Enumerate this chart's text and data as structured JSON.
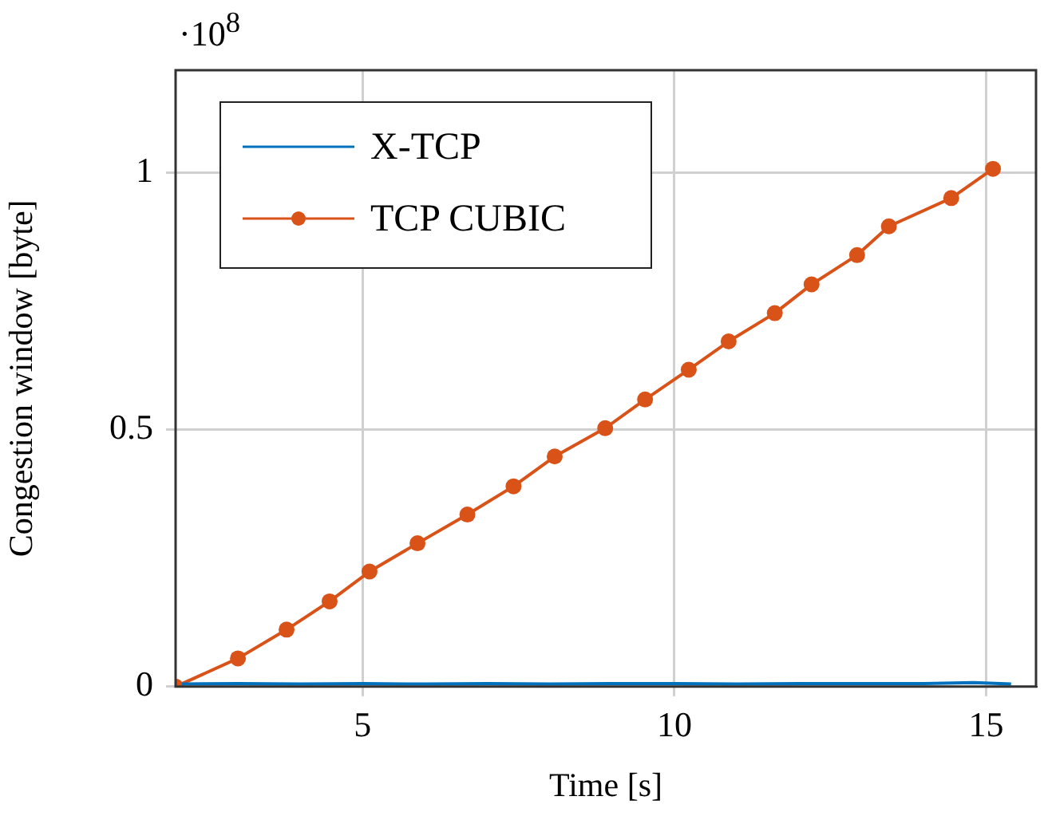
{
  "chart_data": {
    "type": "line",
    "xlabel": "Time [s]",
    "ylabel": "Congestion window [byte]",
    "annotations": [
      "·10$^{8}$"
    ],
    "xlim": [
      2,
      15.8
    ],
    "xticks": [
      5,
      10,
      15
    ],
    "ylim": [
      0,
      1.2
    ],
    "yticks": [
      0,
      0.5,
      1
    ],
    "grid": true,
    "legend": "top left",
    "line_style": "solid",
    "series": [
      {
        "name": "X-TCP",
        "color": "#0072bd",
        "marker": "none",
        "x": [
          2.1,
          3,
          4,
          5,
          6,
          7,
          8,
          9,
          10,
          11,
          12,
          13,
          14,
          14.8,
          15.4
        ],
        "values": [
          0.005,
          0.006,
          0.005,
          0.006,
          0.005,
          0.006,
          0.005,
          0.006,
          0.006,
          0.005,
          0.006,
          0.006,
          0.006,
          0.008,
          0.005
        ]
      },
      {
        "name": "TCP CUBIC",
        "color": "#d95319",
        "marker": "circle",
        "x": [
          2,
          3,
          3.78,
          4.47,
          5.11,
          5.88,
          6.68,
          7.42,
          8.08,
          8.89,
          9.53,
          10.23,
          10.87,
          11.61,
          12.2,
          12.93,
          13.44,
          14.44,
          15.11
        ],
        "values": [
          0,
          0.055,
          0.111,
          0.166,
          0.224,
          0.279,
          0.335,
          0.39,
          0.448,
          0.503,
          0.559,
          0.617,
          0.672,
          0.727,
          0.783,
          0.84,
          0.896,
          0.951,
          1.008
        ]
      }
    ]
  }
}
